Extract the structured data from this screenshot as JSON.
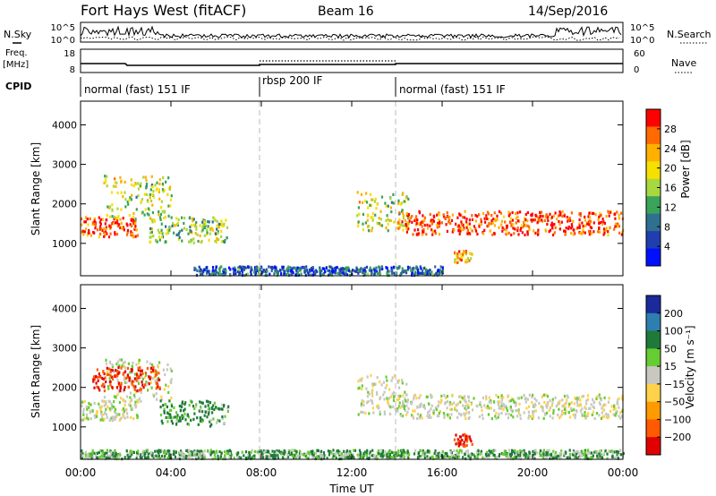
{
  "header": {
    "title": "Fort Hays West (fitACF)",
    "beam": "Beam 16",
    "date": "14/Sep/2016"
  },
  "strips": {
    "nsky_label": "N.Sky",
    "nsearch_label": "N.Search",
    "nsky_ticks": [
      "10^5",
      "10^0"
    ],
    "nsearch_ticks": [
      "10^5",
      "10^0"
    ],
    "freq_label": "Freq.",
    "freq_unit": "[MHz]",
    "freq_ticks": [
      "18",
      "8"
    ],
    "nave_label": "Nave",
    "nave_ticks": [
      "60",
      "0"
    ],
    "cpid_label": "CPID"
  },
  "cpid_segments": [
    {
      "label": "normal (fast) 151 IF",
      "start_h": 0,
      "end_h": 8
    },
    {
      "label": "rbsp 200 IF",
      "start_h": 8,
      "end_h": 14
    },
    {
      "label": "normal (fast) 151 IF",
      "start_h": 14,
      "end_h": 24
    }
  ],
  "power_colorbar": {
    "label": "Power [dB]",
    "ticks": [
      "28",
      "24",
      "20",
      "16",
      "12",
      "8",
      "4"
    ],
    "colors": [
      "#ff0000",
      "#ff6a00",
      "#ffb000",
      "#f5e000",
      "#a8d840",
      "#3aa35a",
      "#2f6f8f",
      "#1f3fb0",
      "#0010ff"
    ]
  },
  "velocity_colorbar": {
    "label": "Velocity [m s⁻¹]",
    "ticks": [
      "200",
      "100",
      "50",
      "15",
      "−15",
      "−50",
      "−100",
      "−200"
    ],
    "colors": [
      "#1a2a9a",
      "#2d7fb0",
      "#1f7a3a",
      "#66cc33",
      "#c8c8c0",
      "#ffd24a",
      "#ff9a00",
      "#ff5a00",
      "#e00000"
    ]
  },
  "x_axis": {
    "label": "Time UT",
    "ticks": [
      "00:00",
      "04:00",
      "08:00",
      "12:00",
      "16:00",
      "20:00",
      "00:00"
    ]
  },
  "chart_data": [
    {
      "type": "heatmap",
      "name": "power",
      "ylabel": "Slant Range [km]",
      "xlabel": "Time UT",
      "xlim_hours": [
        0,
        24
      ],
      "ylim_km": [
        180,
        4600
      ],
      "yticks": [
        1000,
        2000,
        3000,
        4000
      ],
      "dashed_time_markers_h": [
        8,
        14
      ],
      "echo_regions": [
        {
          "t": [
            0.0,
            2.5
          ],
          "range_km": [
            1150,
            1650
          ],
          "value_db": 26
        },
        {
          "t": [
            1.0,
            4.0
          ],
          "range_km": [
            1600,
            2700
          ],
          "value_db": 16
        },
        {
          "t": [
            3.0,
            6.5
          ],
          "range_km": [
            1000,
            1650
          ],
          "value_db": 14
        },
        {
          "t": [
            12.2,
            14.5
          ],
          "range_km": [
            1300,
            2300
          ],
          "value_db": 16
        },
        {
          "t": [
            14.0,
            24.0
          ],
          "range_km": [
            1200,
            1800
          ],
          "value_db": 26
        },
        {
          "t": [
            16.5,
            17.3
          ],
          "range_km": [
            500,
            800
          ],
          "value_db": 20
        },
        {
          "t": [
            5.0,
            16.0
          ],
          "range_km": [
            180,
            400
          ],
          "value_db": 6
        }
      ]
    },
    {
      "type": "heatmap",
      "name": "velocity",
      "ylabel": "Slant Range [km]",
      "xlabel": "Time UT",
      "xlim_hours": [
        0,
        24
      ],
      "ylim_km": [
        180,
        4600
      ],
      "yticks": [
        1000,
        2000,
        3000,
        4000
      ],
      "dashed_time_markers_h": [
        8,
        14
      ],
      "echo_regions": [
        {
          "t": [
            0.0,
            2.5
          ],
          "range_km": [
            1150,
            1650
          ],
          "value_ms": 0
        },
        {
          "t": [
            1.0,
            4.0
          ],
          "range_km": [
            1600,
            2700
          ],
          "value_ms": 0
        },
        {
          "t": [
            0.5,
            3.5
          ],
          "range_km": [
            1900,
            2500
          ],
          "value_ms": -150
        },
        {
          "t": [
            3.5,
            6.5
          ],
          "range_km": [
            1000,
            1650
          ],
          "value_ms": 40
        },
        {
          "t": [
            12.2,
            14.5
          ],
          "range_km": [
            1300,
            2300
          ],
          "value_ms": 0
        },
        {
          "t": [
            14.0,
            24.0
          ],
          "range_km": [
            1200,
            1800
          ],
          "value_ms": 0
        },
        {
          "t": [
            16.5,
            17.3
          ],
          "range_km": [
            500,
            800
          ],
          "value_ms": -150
        },
        {
          "t": [
            0.0,
            24.0
          ],
          "range_km": [
            180,
            400
          ],
          "value_ms": 30
        }
      ]
    }
  ]
}
